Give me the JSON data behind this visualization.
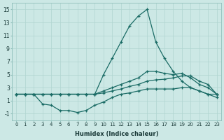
{
  "xlabel": "Humidex (Indice chaleur)",
  "bg_color": "#cce8e5",
  "grid_color": "#b0d4d0",
  "line_color": "#1a6b65",
  "xlim": [
    -0.5,
    23.5
  ],
  "ylim": [
    -2,
    16
  ],
  "yticks": [
    -1,
    1,
    3,
    5,
    7,
    9,
    11,
    13,
    15
  ],
  "xticks": [
    0,
    1,
    2,
    3,
    4,
    5,
    6,
    7,
    8,
    9,
    10,
    11,
    12,
    13,
    14,
    15,
    16,
    17,
    18,
    19,
    20,
    21,
    22,
    23
  ],
  "line_peak_x": [
    0,
    1,
    2,
    3,
    4,
    5,
    6,
    7,
    8,
    9,
    10,
    11,
    12,
    13,
    14,
    15,
    16,
    17,
    18,
    19,
    20,
    21,
    22,
    23
  ],
  "line_peak_y": [
    2.0,
    2.0,
    2.0,
    2.0,
    2.0,
    2.0,
    2.0,
    2.0,
    2.0,
    2.0,
    5.0,
    7.5,
    10.0,
    12.5,
    14.0,
    15.0,
    10.0,
    7.5,
    5.5,
    4.0,
    3.0,
    2.5,
    2.0,
    2.0
  ],
  "line_upper_x": [
    0,
    1,
    2,
    3,
    4,
    5,
    6,
    7,
    8,
    9,
    10,
    11,
    12,
    13,
    14,
    15,
    16,
    17,
    18,
    19,
    20,
    21,
    22,
    23
  ],
  "line_upper_y": [
    2.0,
    2.0,
    2.0,
    2.0,
    2.0,
    2.0,
    2.0,
    2.0,
    2.0,
    2.0,
    2.5,
    3.0,
    3.5,
    4.0,
    4.5,
    5.5,
    5.5,
    5.2,
    5.0,
    5.2,
    4.5,
    3.5,
    3.0,
    2.0
  ],
  "line_mid_x": [
    0,
    1,
    2,
    3,
    4,
    5,
    6,
    7,
    8,
    9,
    10,
    11,
    12,
    13,
    14,
    15,
    16,
    17,
    18,
    19,
    20,
    21,
    22,
    23
  ],
  "line_mid_y": [
    2.0,
    2.0,
    2.0,
    2.0,
    2.0,
    2.0,
    2.0,
    2.0,
    2.0,
    2.0,
    2.2,
    2.5,
    2.8,
    3.2,
    3.5,
    4.0,
    4.2,
    4.3,
    4.5,
    4.8,
    4.8,
    4.0,
    3.5,
    2.0
  ],
  "line_low_x": [
    0,
    1,
    2,
    3,
    4,
    5,
    6,
    7,
    8,
    9,
    10,
    11,
    12,
    13,
    14,
    15,
    16,
    17,
    18,
    19,
    20,
    21,
    22,
    23
  ],
  "line_low_y": [
    2.0,
    2.0,
    2.0,
    0.5,
    0.3,
    -0.5,
    -0.5,
    -0.8,
    -0.5,
    0.3,
    0.8,
    1.5,
    2.0,
    2.2,
    2.5,
    2.8,
    2.8,
    2.8,
    2.8,
    3.0,
    3.0,
    2.5,
    2.0,
    1.5
  ]
}
